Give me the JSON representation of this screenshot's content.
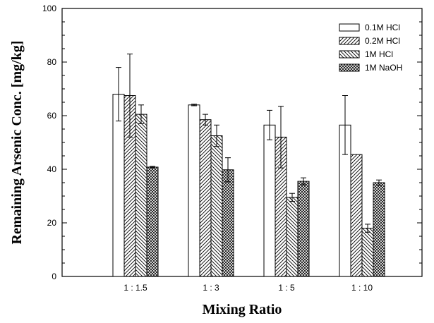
{
  "chart_data": {
    "type": "bar",
    "categories": [
      "1 : 1.5",
      "1 : 3",
      "1 : 5",
      "1 : 10"
    ],
    "series": [
      {
        "name": "0.1M HCl",
        "values": [
          68,
          64,
          56.5,
          56.5
        ],
        "errors": [
          10,
          0.3,
          5.5,
          11
        ],
        "pattern": "empty"
      },
      {
        "name": "0.2M HCl",
        "values": [
          67.5,
          58.5,
          52,
          45.5
        ],
        "errors": [
          15.5,
          2,
          11.5,
          0
        ],
        "pattern": "diagonal-right"
      },
      {
        "name": "1M HCl",
        "values": [
          60.5,
          52.5,
          29.5,
          18
        ],
        "errors": [
          3.5,
          4,
          1.5,
          1.5
        ],
        "pattern": "diagonal-left"
      },
      {
        "name": "1M NaOH",
        "values": [
          40.8,
          39.8,
          35.5,
          35
        ],
        "errors": [
          0.3,
          4.5,
          1.3,
          1
        ],
        "pattern": "crosshatch"
      }
    ],
    "xlabel": "Mixing Ratio",
    "ylabel": "Remaining Arsenic Conc. [mg/kg]",
    "ylim": [
      0,
      100
    ],
    "yticks": [
      0,
      20,
      40,
      60,
      80,
      100
    ],
    "legend_position": "top-right",
    "grid": false
  }
}
